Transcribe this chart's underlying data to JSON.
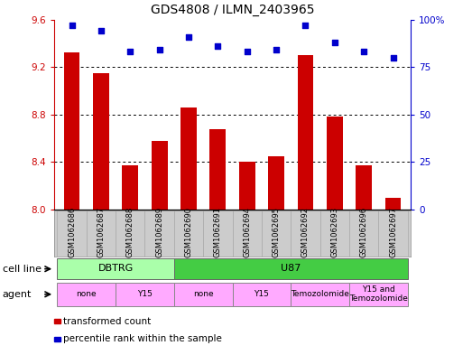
{
  "title": "GDS4808 / ILMN_2403965",
  "samples": [
    "GSM1062686",
    "GSM1062687",
    "GSM1062688",
    "GSM1062689",
    "GSM1062690",
    "GSM1062691",
    "GSM1062694",
    "GSM1062695",
    "GSM1062692",
    "GSM1062693",
    "GSM1062696",
    "GSM1062697"
  ],
  "bar_values": [
    9.32,
    9.15,
    8.37,
    8.58,
    8.86,
    8.68,
    8.4,
    8.45,
    9.3,
    8.78,
    8.37,
    8.1
  ],
  "dot_values": [
    97,
    94,
    83,
    84,
    91,
    86,
    83,
    84,
    97,
    88,
    83,
    80
  ],
  "ylim_left": [
    8.0,
    9.6
  ],
  "ylim_right": [
    0,
    100
  ],
  "yticks_left": [
    8.0,
    8.4,
    8.8,
    9.2,
    9.6
  ],
  "yticks_right": [
    0,
    25,
    50,
    75,
    100
  ],
  "ytick_labels_right": [
    "0",
    "25",
    "50",
    "75",
    "100%"
  ],
  "bar_color": "#cc0000",
  "dot_color": "#0000cc",
  "cell_line_dbtrg_color": "#aaffaa",
  "cell_line_u87_color": "#44cc44",
  "agent_color": "#ffaaff",
  "sample_box_color": "#cccccc",
  "legend_items": [
    {
      "label": "transformed count",
      "color": "#cc0000"
    },
    {
      "label": "percentile rank within the sample",
      "color": "#0000cc"
    }
  ],
  "cell_line_label": "cell line",
  "agent_label": "agent",
  "bg_color": "#ffffff",
  "tick_color_left": "#cc0000",
  "tick_color_right": "#0000cc",
  "gridline_yticks": [
    8.4,
    8.8,
    9.2
  ],
  "agent_spans": [
    {
      "label": "none",
      "start": 0,
      "end": 1
    },
    {
      "label": "Y15",
      "start": 2,
      "end": 3
    },
    {
      "label": "none",
      "start": 4,
      "end": 5
    },
    {
      "label": "Y15",
      "start": 6,
      "end": 7
    },
    {
      "label": "Temozolomide",
      "start": 8,
      "end": 9
    },
    {
      "label": "Y15 and\nTemozolomide",
      "start": 10,
      "end": 11
    }
  ]
}
